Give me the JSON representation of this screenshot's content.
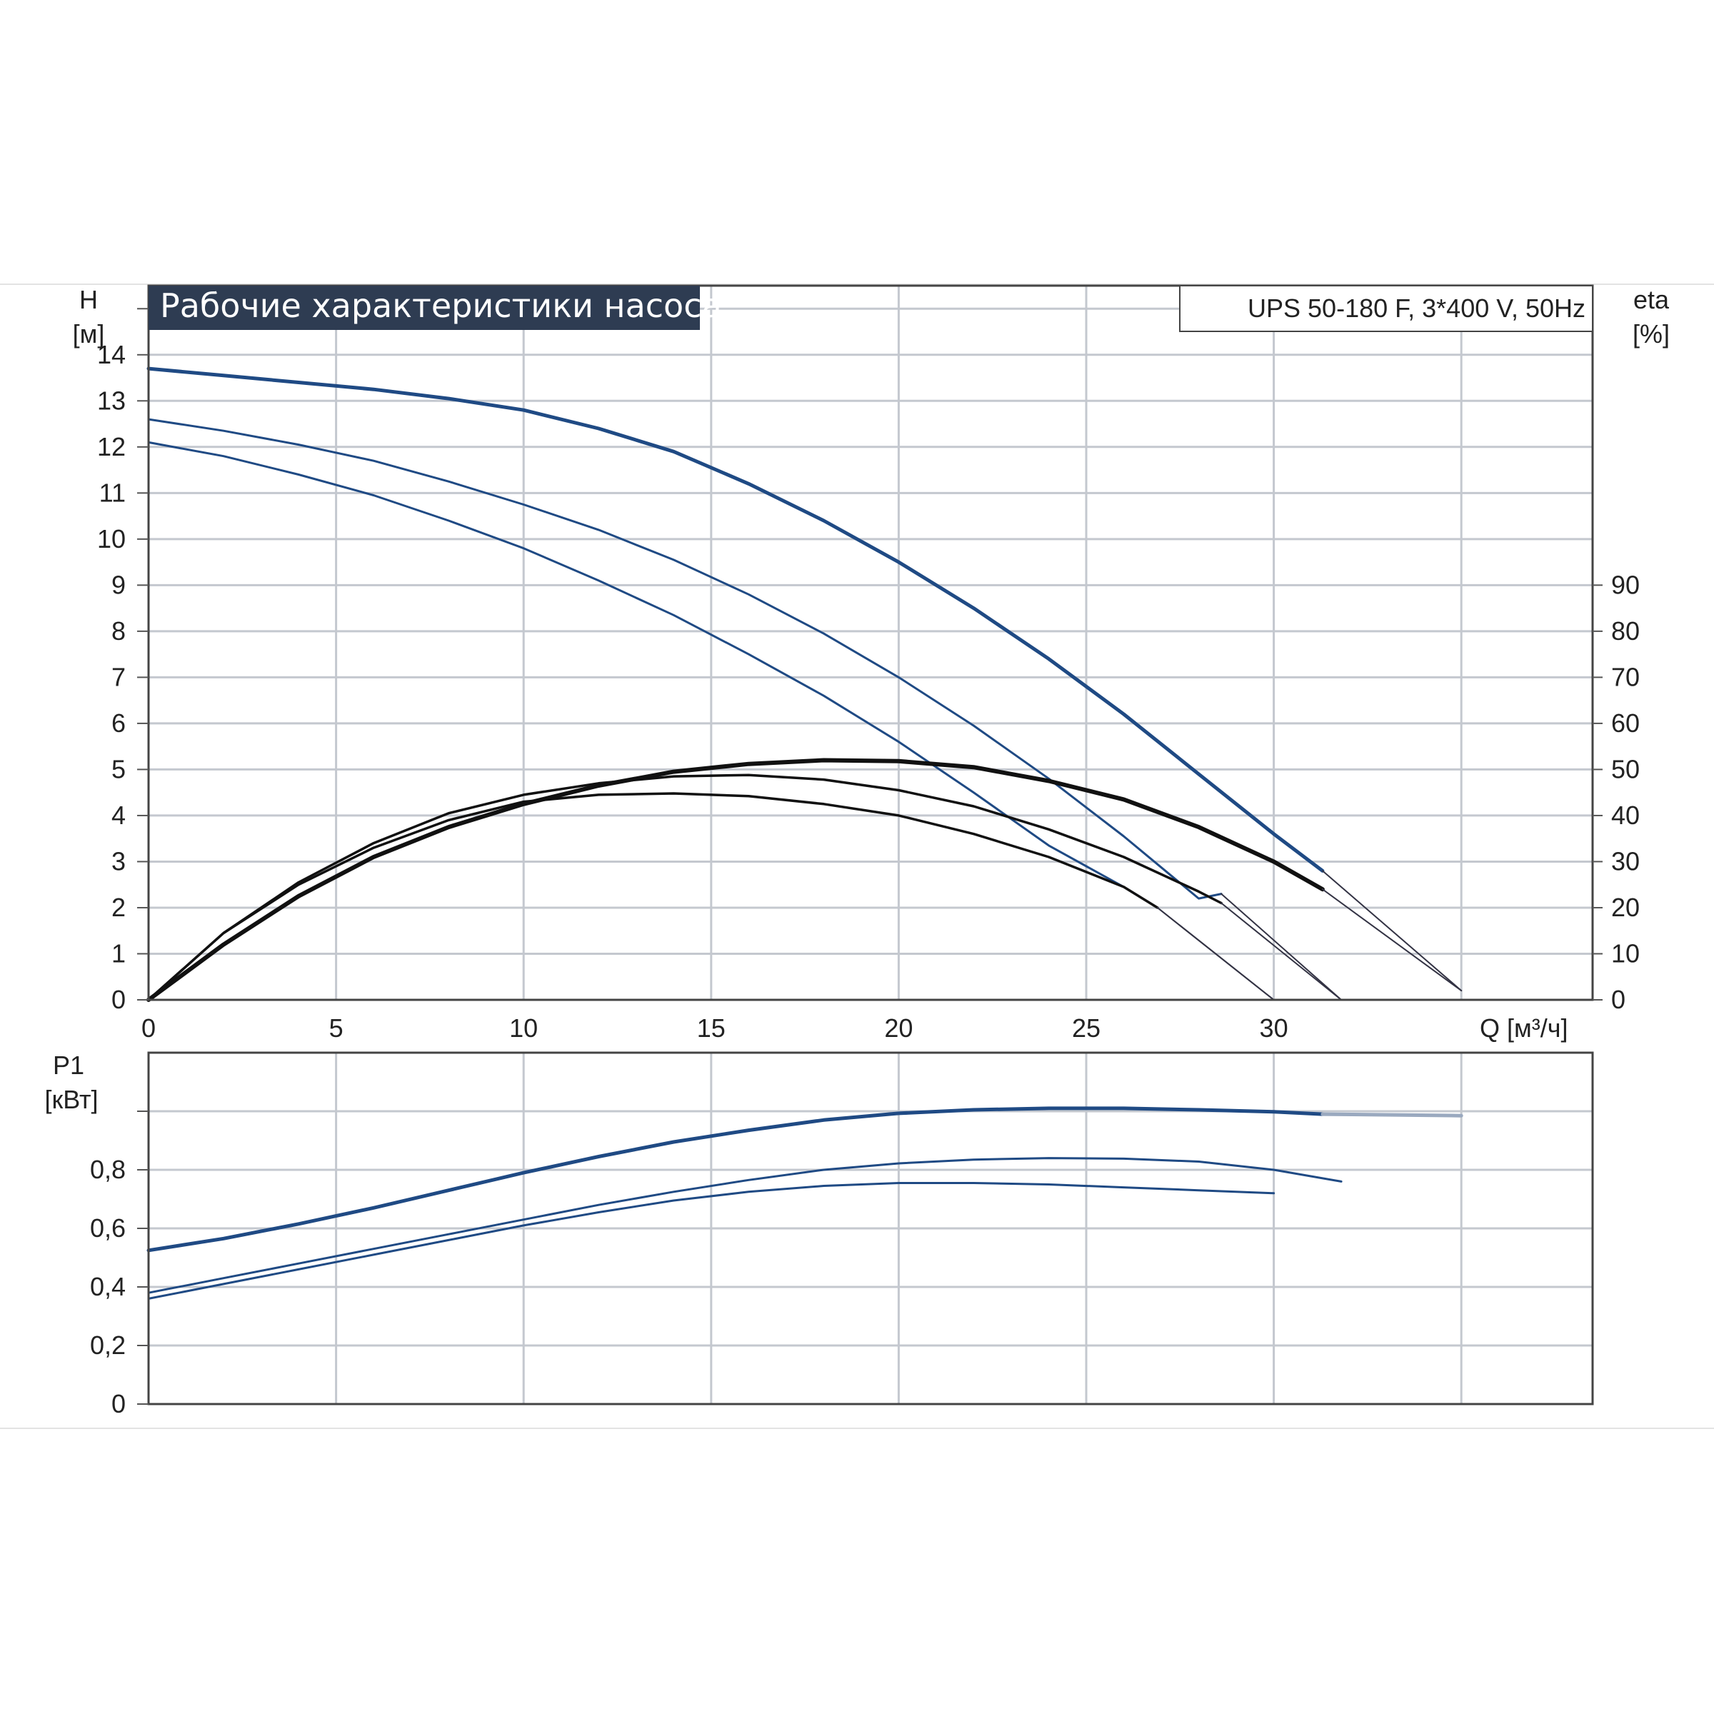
{
  "title": "Рабочие характеристики насоса",
  "model_label": "UPS 50-180 F, 3*400 V, 50Hz",
  "colors": {
    "head": "#1f4a84",
    "efficiency": "#111111",
    "power": "#1f4a84",
    "grid": "#c4c8cf",
    "title_bg": "#2e3c52",
    "extension": "#9aa9bf"
  },
  "chart_data": [
    {
      "type": "line",
      "xlabel": "Q [м³/ч]",
      "ylabel_left": "H [м]",
      "ylabel_right": "eta [%]",
      "xlim": [
        0,
        38.5
      ],
      "ylim_left": [
        0,
        15.5
      ],
      "ylim_right": [
        0,
        155
      ],
      "x_ticks": [
        0,
        5,
        10,
        15,
        20,
        25,
        30
      ],
      "y_ticks_left": [
        0,
        1,
        2,
        3,
        4,
        5,
        6,
        7,
        8,
        9,
        10,
        11,
        12,
        13,
        14
      ],
      "y_ticks_right": [
        0,
        10,
        20,
        30,
        40,
        50,
        60,
        70,
        80,
        90
      ],
      "grid": true,
      "series": [
        {
          "kind": "head",
          "axis": "left",
          "width": 5,
          "x": [
            0,
            2,
            4,
            6,
            8,
            10,
            12,
            14,
            16,
            18,
            20,
            22,
            24,
            26,
            28,
            30,
            31.3
          ],
          "y": [
            13.7,
            13.55,
            13.4,
            13.25,
            13.05,
            12.8,
            12.4,
            11.9,
            11.2,
            10.4,
            9.5,
            8.5,
            7.4,
            6.2,
            4.9,
            3.6,
            2.8
          ]
        },
        {
          "kind": "head",
          "axis": "left",
          "width": 3,
          "x": [
            0,
            2,
            4,
            6,
            8,
            10,
            12,
            14,
            16,
            18,
            20,
            22,
            24,
            26,
            28,
            28.6
          ],
          "y": [
            12.6,
            12.35,
            12.05,
            11.7,
            11.25,
            10.75,
            10.2,
            9.55,
            8.8,
            7.95,
            7.0,
            5.95,
            4.8,
            3.55,
            2.2,
            2.3
          ]
        },
        {
          "kind": "head",
          "axis": "left",
          "width": 3,
          "x": [
            0,
            2,
            4,
            6,
            8,
            10,
            12,
            14,
            16,
            18,
            20,
            22,
            24,
            26,
            26.9
          ],
          "y": [
            12.1,
            11.8,
            11.4,
            10.95,
            10.4,
            9.8,
            9.1,
            8.35,
            7.5,
            6.6,
            5.6,
            4.5,
            3.35,
            2.45,
            2.0
          ]
        },
        {
          "kind": "efficiency",
          "axis": "right",
          "width": 6,
          "x": [
            0,
            2,
            4,
            6,
            8,
            10,
            12,
            14,
            16,
            18,
            20,
            22,
            24,
            26,
            28,
            30,
            31.3
          ],
          "y": [
            0,
            12,
            22.5,
            31,
            37.5,
            42.5,
            46.5,
            49.5,
            51.2,
            52,
            51.8,
            50.5,
            47.5,
            43.5,
            37.5,
            30.0,
            24.0
          ]
        },
        {
          "kind": "efficiency",
          "axis": "right",
          "width": 3.5,
          "x": [
            0,
            2,
            4,
            6,
            8,
            10,
            12,
            14,
            16,
            18,
            20,
            22,
            24,
            26,
            28,
            28.6
          ],
          "y": [
            0,
            14.5,
            25.5,
            34,
            40.5,
            44.5,
            47,
            48.5,
            48.8,
            47.8,
            45.5,
            42,
            37,
            31,
            23.5,
            21.0
          ]
        },
        {
          "kind": "efficiency",
          "axis": "right",
          "width": 3.5,
          "x": [
            0,
            2,
            4,
            6,
            8,
            10,
            12,
            14,
            16,
            18,
            20,
            22,
            24,
            26,
            26.9
          ],
          "y": [
            0,
            14.5,
            25,
            33,
            39,
            43,
            44.5,
            44.8,
            44.2,
            42.5,
            40,
            36,
            31,
            24.5,
            20.0
          ]
        },
        {
          "kind": "head-extension",
          "axis": "left",
          "width": 2,
          "x": [
            31.3,
            35
          ],
          "y": [
            2.8,
            0.2
          ]
        },
        {
          "kind": "head-extension",
          "axis": "left",
          "width": 2,
          "x": [
            28.6,
            31.8
          ],
          "y": [
            2.3,
            0.0
          ]
        },
        {
          "kind": "head-extension",
          "axis": "left",
          "width": 2,
          "x": [
            26.9,
            30
          ],
          "y": [
            2.0,
            0.0
          ]
        },
        {
          "kind": "efficiency-extension",
          "axis": "right",
          "width": 2,
          "x": [
            31.3,
            35
          ],
          "y": [
            24.0,
            2.0
          ]
        },
        {
          "kind": "efficiency-extension",
          "axis": "right",
          "width": 2,
          "x": [
            28.6,
            31.8
          ],
          "y": [
            21.0,
            0.0
          ]
        },
        {
          "kind": "efficiency-extension",
          "axis": "right",
          "width": 2,
          "x": [
            26.9,
            30
          ],
          "y": [
            20.0,
            0.0
          ]
        }
      ]
    },
    {
      "type": "line",
      "ylabel": "P1 [кВт]",
      "xlim": [
        0,
        38.5
      ],
      "ylim": [
        0,
        1.2
      ],
      "y_ticks": [
        0,
        0.2,
        0.4,
        0.6,
        0.8
      ],
      "y_tick_labels": [
        "0",
        "0,2",
        "0,4",
        "0,6",
        "0,8"
      ],
      "grid": true,
      "series": [
        {
          "kind": "power",
          "width": 5,
          "x": [
            0,
            2,
            4,
            6,
            8,
            10,
            12,
            14,
            16,
            18,
            20,
            22,
            24,
            26,
            28,
            30,
            31.3
          ],
          "y": [
            0.525,
            0.565,
            0.615,
            0.67,
            0.73,
            0.79,
            0.845,
            0.895,
            0.935,
            0.97,
            0.993,
            1.005,
            1.01,
            1.01,
            1.005,
            0.998,
            0.99
          ]
        },
        {
          "kind": "power",
          "width": 3,
          "x": [
            0,
            2,
            4,
            6,
            8,
            10,
            12,
            14,
            16,
            18,
            20,
            22,
            24,
            26,
            28,
            30,
            31.8
          ],
          "y": [
            0.38,
            0.43,
            0.48,
            0.53,
            0.58,
            0.63,
            0.68,
            0.725,
            0.765,
            0.8,
            0.822,
            0.835,
            0.84,
            0.838,
            0.828,
            0.8,
            0.76
          ]
        },
        {
          "kind": "power",
          "width": 3,
          "x": [
            0,
            2,
            4,
            6,
            8,
            10,
            12,
            14,
            16,
            18,
            20,
            22,
            24,
            26,
            28,
            30
          ],
          "y": [
            0.36,
            0.41,
            0.46,
            0.51,
            0.56,
            0.61,
            0.655,
            0.695,
            0.725,
            0.745,
            0.755,
            0.755,
            0.75,
            0.74,
            0.73,
            0.72
          ]
        },
        {
          "kind": "power-extension",
          "width": 5,
          "x": [
            31.3,
            35
          ],
          "y": [
            0.99,
            0.985
          ]
        }
      ]
    }
  ]
}
